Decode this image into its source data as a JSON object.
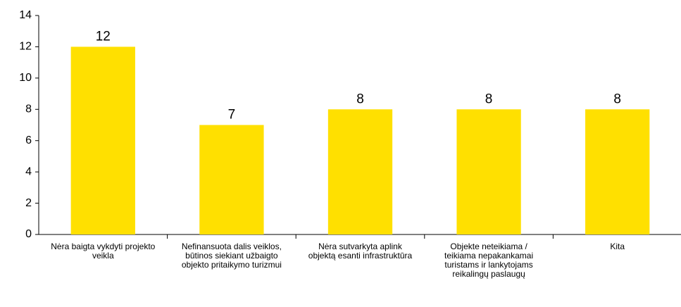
{
  "chart_data": {
    "type": "bar",
    "categories": [
      "Nėra baigta vykdyti projekto veikla",
      "Nefinansuota dalis veiklos, būtinos siekiant užbaigto objekto pritaikymo turizmui",
      "Nėra sutvarkyta aplink objektą esanti infrastruktūra",
      "Objekte neteikiama / teikiama nepakankamai turistams ir lankytojams reikalingų paslaugų",
      "Kita"
    ],
    "values": [
      12,
      7,
      8,
      8,
      8
    ],
    "color": "#ffe000",
    "ylim": [
      0,
      14
    ],
    "yticks": [
      0,
      2,
      4,
      6,
      8,
      10,
      12,
      14
    ],
    "grid": false
  }
}
